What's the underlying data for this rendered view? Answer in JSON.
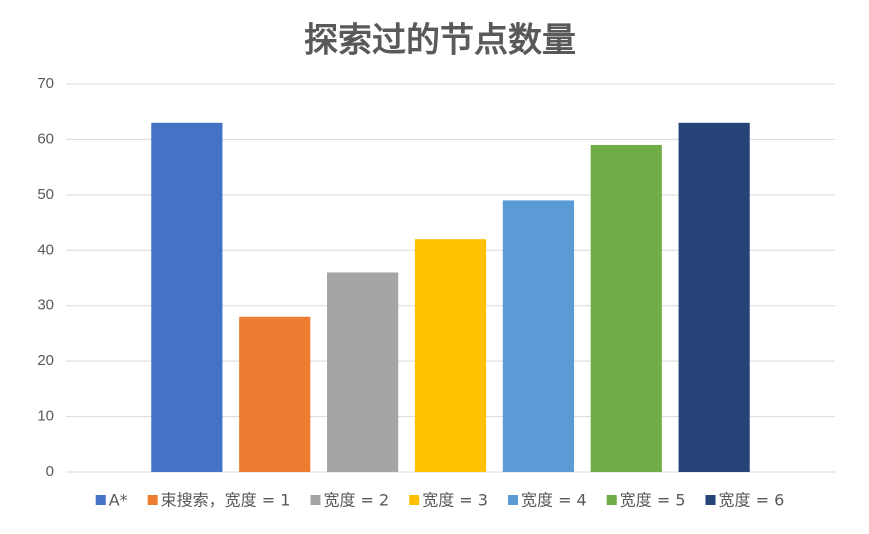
{
  "chart_data": {
    "type": "bar",
    "title": "探索过的节点数量",
    "categories": [
      null
    ],
    "series": [
      {
        "name": "A*",
        "color": "#4472c4",
        "values": [
          63
        ]
      },
      {
        "name": "束搜索，宽度 = 1",
        "color": "#ed7d31",
        "values": [
          28
        ]
      },
      {
        "name": "宽度 = 2",
        "color": "#a5a5a5",
        "values": [
          36
        ]
      },
      {
        "name": "宽度 = 3",
        "color": "#ffc000",
        "values": [
          42
        ]
      },
      {
        "name": "宽度 = 4",
        "color": "#5b9bd5",
        "values": [
          49
        ]
      },
      {
        "name": "宽度 = 5",
        "color": "#70ad47",
        "values": [
          59
        ]
      },
      {
        "name": "宽度 = 6",
        "color": "#264478",
        "values": [
          63
        ]
      }
    ],
    "ylim": [
      0,
      70
    ],
    "yticks": [
      0,
      10,
      20,
      30,
      40,
      50,
      60,
      70
    ],
    "grid": true,
    "legend": "bottom"
  }
}
